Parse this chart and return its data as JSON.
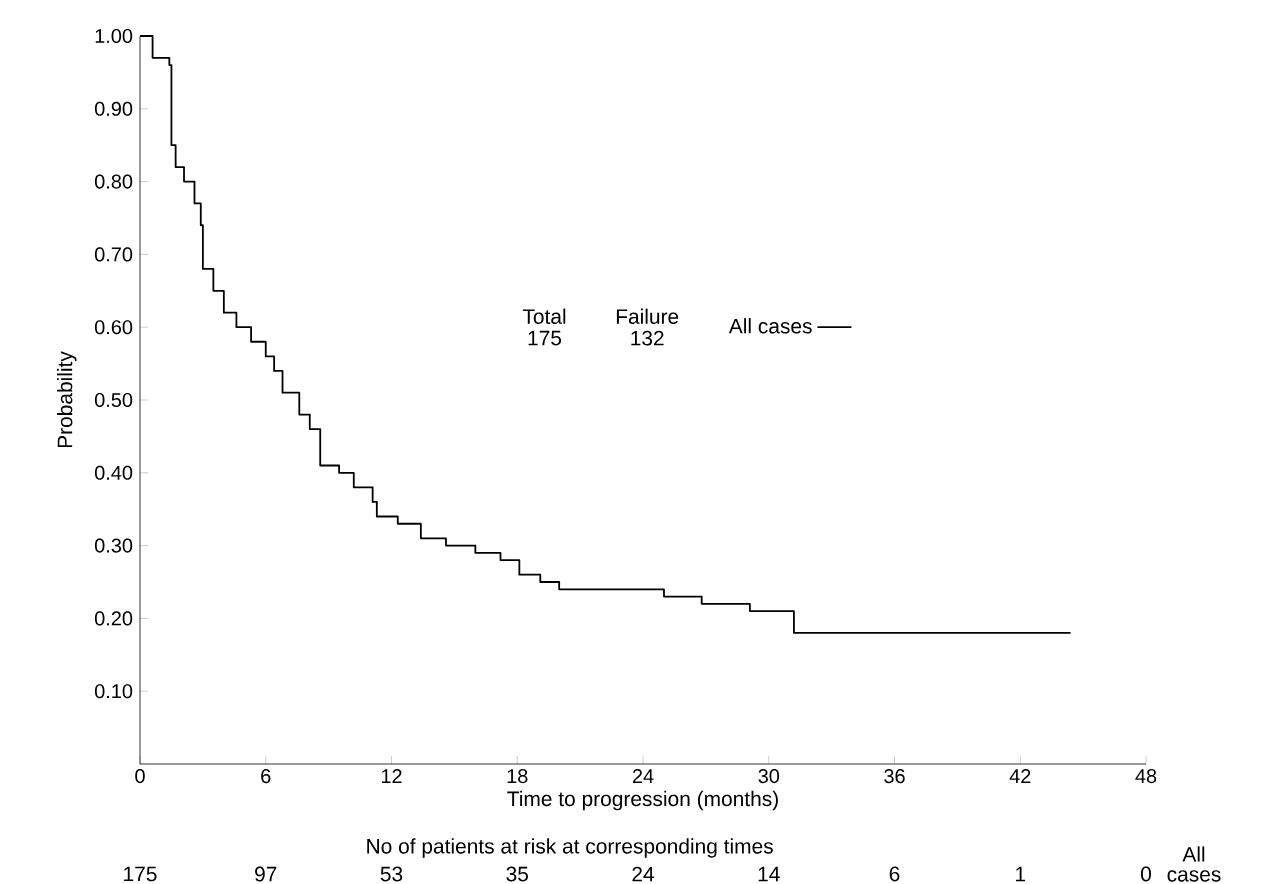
{
  "chart_data": {
    "type": "step",
    "xlabel": "Time to progression (months)",
    "ylabel": "Probability",
    "xlim": [
      0,
      48
    ],
    "ylim": [
      0,
      1
    ],
    "xticks": [
      0,
      6,
      12,
      18,
      24,
      30,
      36,
      42,
      48
    ],
    "yticks": [
      {
        "value": 0.1,
        "label": "0.10"
      },
      {
        "value": 0.2,
        "label": "0.20"
      },
      {
        "value": 0.3,
        "label": "0.30"
      },
      {
        "value": 0.4,
        "label": "0.40"
      },
      {
        "value": 0.5,
        "label": "0.50"
      },
      {
        "value": 0.6,
        "label": "0.60"
      },
      {
        "value": 0.7,
        "label": "0.70"
      },
      {
        "value": 0.8,
        "label": "0.80"
      },
      {
        "value": 0.9,
        "label": "0.90"
      },
      {
        "value": 1.0,
        "label": "1.00"
      }
    ],
    "series": [
      {
        "name": "All cases",
        "color": "#000000",
        "x": [
          0,
          0.6,
          1.4,
          1.5,
          1.7,
          2.1,
          2.6,
          2.9,
          3.0,
          3.5,
          4.0,
          4.6,
          5.3,
          6.0,
          6.4,
          6.8,
          7.6,
          8.1,
          8.6,
          9.5,
          10.2,
          11.1,
          11.3,
          12.3,
          13.4,
          14.6,
          16.0,
          17.2,
          18.1,
          19.1,
          20.0,
          21.8,
          25.0,
          26.8,
          29.1,
          31.2,
          44.4
        ],
        "values": [
          1.0,
          0.97,
          0.96,
          0.85,
          0.82,
          0.8,
          0.77,
          0.74,
          0.68,
          0.65,
          0.62,
          0.6,
          0.58,
          0.56,
          0.54,
          0.51,
          0.48,
          0.46,
          0.41,
          0.4,
          0.38,
          0.36,
          0.34,
          0.33,
          0.31,
          0.3,
          0.29,
          0.28,
          0.26,
          0.25,
          0.24,
          0.24,
          0.23,
          0.22,
          0.21,
          0.18,
          0.18
        ]
      }
    ],
    "legend": "top right",
    "annotations": [
      "Total",
      "Failure",
      "175",
      "132",
      "No of patients at risk at corresponding times",
      "175",
      "97",
      "53",
      "35",
      "24",
      "14",
      "6",
      "1",
      "0",
      "All cases"
    ]
  }
}
